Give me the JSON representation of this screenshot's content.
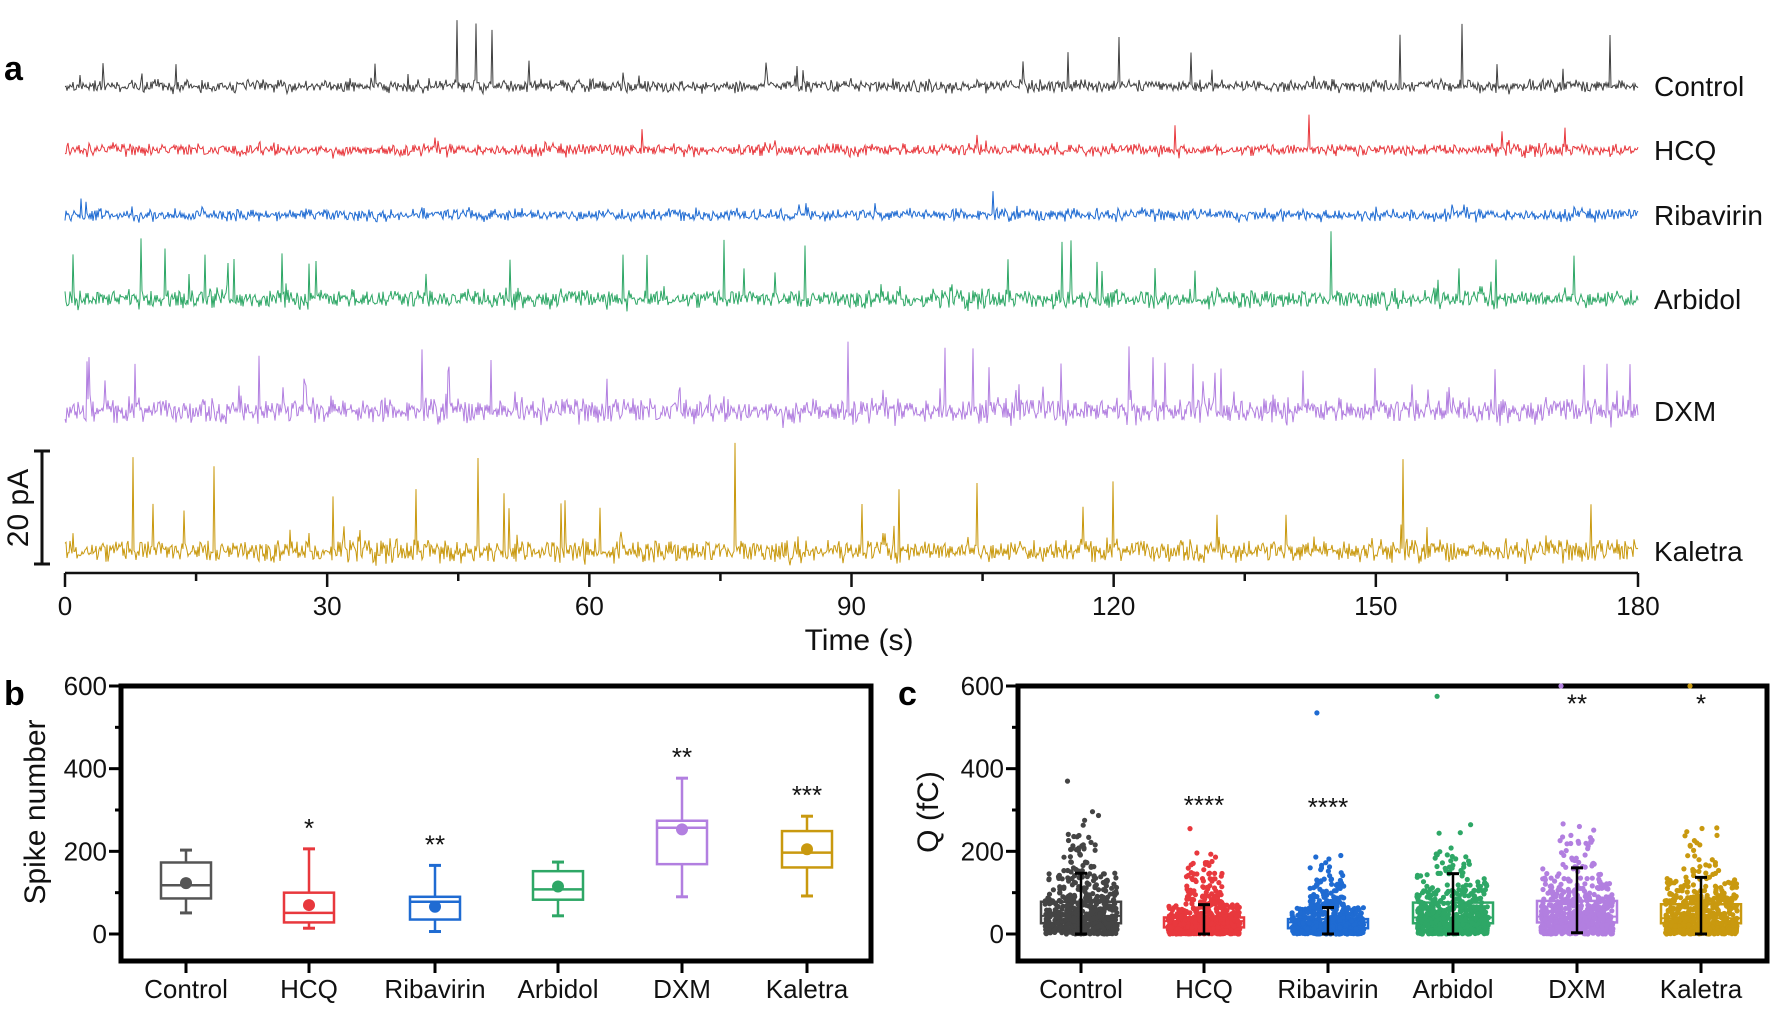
{
  "panel_labels": {
    "a": "a",
    "b": "b",
    "c": "c"
  },
  "chart_data": [
    {
      "panel": "a",
      "type": "line",
      "xlabel": "Time (s)",
      "xlim": [
        0,
        180
      ],
      "xticks": [
        "0",
        "30",
        "60",
        "90",
        "120",
        "150",
        "180"
      ],
      "scale_bar": "20 pA",
      "series": [
        {
          "name": "Control",
          "color": "#404040"
        },
        {
          "name": "HCQ",
          "color": "#e8383d"
        },
        {
          "name": "Ribavirin",
          "color": "#1f6bd2"
        },
        {
          "name": "Arbidol",
          "color": "#2ea766"
        },
        {
          "name": "DXM",
          "color": "#b27fe0"
        },
        {
          "name": "Kaletra",
          "color": "#c9990f"
        }
      ]
    },
    {
      "panel": "b",
      "type": "box",
      "ylabel": "Spike number",
      "ylim": [
        0,
        600
      ],
      "yticks": [
        "0",
        "200",
        "400",
        "600"
      ],
      "categories": [
        "Control",
        "HCQ",
        "Ribavirin",
        "Arbidol",
        "DXM",
        "Kaletra"
      ],
      "colors": [
        "#555555",
        "#e8383d",
        "#1f6bd2",
        "#2ea766",
        "#b27fe0",
        "#c9990f"
      ],
      "boxes": [
        {
          "min": 51,
          "q1": 86,
          "median": 118,
          "q3": 173,
          "max": 203,
          "mean": 123,
          "sig": ""
        },
        {
          "min": 14,
          "q1": 28,
          "median": 51,
          "q3": 100,
          "max": 206,
          "mean": 70,
          "sig": "*"
        },
        {
          "min": 6,
          "q1": 35,
          "median": 78,
          "q3": 90,
          "max": 166,
          "mean": 66,
          "sig": "**"
        },
        {
          "min": 44,
          "q1": 83,
          "median": 108,
          "q3": 152,
          "max": 174,
          "mean": 115,
          "sig": ""
        },
        {
          "min": 90,
          "q1": 169,
          "median": 257,
          "q3": 274,
          "max": 377,
          "mean": 253,
          "sig": "**"
        },
        {
          "min": 92,
          "q1": 161,
          "median": 197,
          "q3": 249,
          "max": 285,
          "mean": 205,
          "sig": "***"
        }
      ]
    },
    {
      "panel": "c",
      "type": "box-scatter",
      "ylabel": "Q (fC)",
      "ylim": [
        0,
        600
      ],
      "yticks": [
        "0",
        "200",
        "400",
        "600"
      ],
      "categories": [
        "Control",
        "HCQ",
        "Ribavirin",
        "Arbidol",
        "DXM",
        "Kaletra"
      ],
      "colors": [
        "#444444",
        "#e8383d",
        "#1f6bd2",
        "#2ea766",
        "#b27fe0",
        "#c9990f"
      ],
      "boxes": [
        {
          "q1": 26,
          "median": 44,
          "q3": 78,
          "whisker_low": 0,
          "whisker_high": 147,
          "max_point": 370,
          "sig": ""
        },
        {
          "q1": 16,
          "median": 31,
          "q3": 40,
          "whisker_low": 0,
          "whisker_high": 71,
          "max_point": 255,
          "sig": "****"
        },
        {
          "q1": 14,
          "median": 28,
          "q3": 36,
          "whisker_low": 0,
          "whisker_high": 64,
          "max_point": 535,
          "sig": "****"
        },
        {
          "q1": 26,
          "median": 40,
          "q3": 76,
          "whisker_low": 0,
          "whisker_high": 146,
          "max_point": 575,
          "sig": ""
        },
        {
          "q1": 28,
          "median": 42,
          "q3": 80,
          "whisker_low": 3,
          "whisker_high": 160,
          "max_point": 600,
          "sig": "**"
        },
        {
          "q1": 26,
          "median": 38,
          "q3": 72,
          "whisker_low": 0,
          "whisker_high": 137,
          "max_point": 600,
          "sig": "*"
        }
      ]
    }
  ]
}
